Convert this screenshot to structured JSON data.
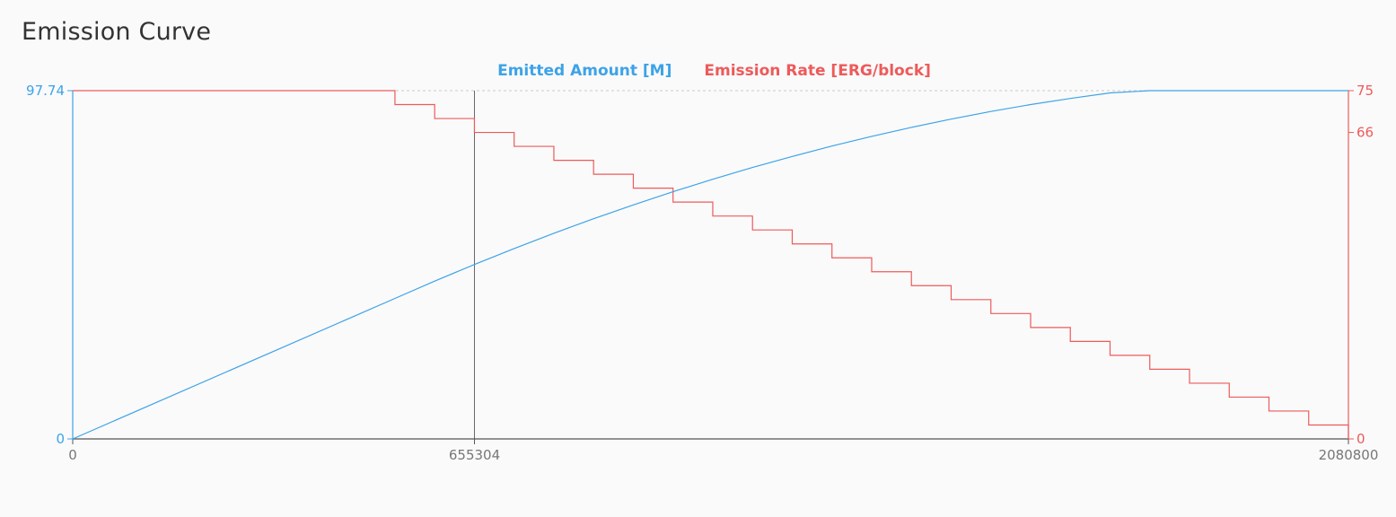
{
  "title": "Emission Curve",
  "colors": {
    "emitted": "#3da3e8",
    "rate": "#ee5a5a",
    "axis": "#555555",
    "tick_text": "#777777",
    "grid": "#cccccc",
    "marker": "#666666"
  },
  "chart_data": {
    "type": "line",
    "title": "Emission Curve",
    "legend": "top-center",
    "grid": false,
    "x_range": [
      0,
      2080800
    ],
    "x_ticks": [
      "0",
      "655304",
      "2080800"
    ],
    "x_tick_values": [
      0,
      655304,
      2080800
    ],
    "marker_x": 655304,
    "y_left": {
      "range": [
        0,
        97.74
      ],
      "ticks": [
        "0",
        "97.74"
      ],
      "tick_values": [
        0,
        97.74
      ]
    },
    "y_right": {
      "range": [
        0,
        75
      ],
      "ticks": [
        "0",
        "66",
        "75"
      ],
      "tick_values": [
        0,
        66,
        75
      ]
    },
    "series": [
      {
        "name": "Emitted Amount [M]",
        "axis": "left",
        "kind": "line",
        "x": [
          0,
          525600,
          590400,
          655200,
          720000,
          784800,
          849600,
          914400,
          979200,
          1044000,
          1108800,
          1173600,
          1238400,
          1303200,
          1368000,
          1432800,
          1497600,
          1562400,
          1627200,
          1692000,
          1756800,
          1821600,
          1886400,
          1951200,
          2016000,
          2080800
        ],
        "values": [
          0,
          39.42,
          44.28,
          48.95,
          53.42,
          57.71,
          61.79,
          65.68,
          69.37,
          72.87,
          76.17,
          79.28,
          82.2,
          84.91,
          87.43,
          89.76,
          91.89,
          93.83,
          95.56,
          97.11,
          98.46,
          99.61,
          100.56,
          101.32,
          101.89,
          102.25
        ]
      },
      {
        "name": "Emission Rate [ERG/block]",
        "axis": "right",
        "kind": "step",
        "x": [
          0,
          525600,
          590400,
          655200,
          720000,
          784800,
          849600,
          914400,
          979200,
          1044000,
          1108800,
          1173600,
          1238400,
          1303200,
          1368000,
          1432800,
          1497600,
          1562400,
          1627200,
          1692000,
          1756800,
          1821600,
          1886400,
          1951200,
          2016000,
          2080800
        ],
        "values": [
          75,
          72,
          69,
          66,
          63,
          60,
          57,
          54,
          51,
          48,
          45,
          42,
          39,
          36,
          33,
          30,
          27,
          24,
          21,
          18,
          15,
          12,
          9,
          6,
          3,
          0
        ]
      }
    ]
  }
}
